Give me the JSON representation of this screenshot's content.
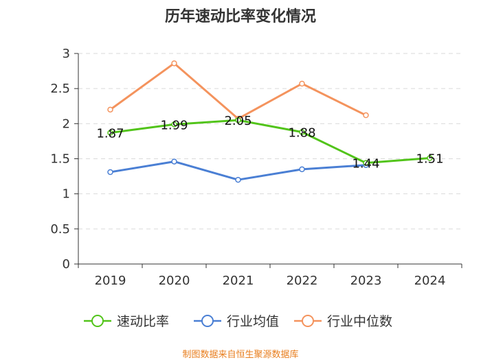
{
  "chart_data": {
    "type": "line",
    "title": "历年速动比率变化情况",
    "categories": [
      "2019",
      "2020",
      "2021",
      "2022",
      "2023",
      "2024"
    ],
    "ylim": [
      0,
      3
    ],
    "yticks": [
      "0",
      "0.5",
      "1",
      "1.5",
      "2",
      "2.5",
      "3"
    ],
    "grid": true,
    "legend_position": "bottom",
    "series": [
      {
        "name": "速动比率",
        "color": "#52c41a",
        "values": [
          1.87,
          1.99,
          2.05,
          1.88,
          1.44,
          1.51
        ],
        "labels": [
          "1.87",
          "1.99",
          "2.05",
          "1.88",
          "1.44",
          "1.51"
        ]
      },
      {
        "name": "行业均值",
        "color": "#4a7fd4",
        "values": [
          1.31,
          1.46,
          1.2,
          1.35,
          1.41,
          null
        ]
      },
      {
        "name": "行业中位数",
        "color": "#f4935d",
        "values": [
          2.2,
          2.86,
          2.07,
          2.57,
          2.12,
          null
        ]
      }
    ]
  },
  "source": "制图数据来自恒生聚源数据库"
}
